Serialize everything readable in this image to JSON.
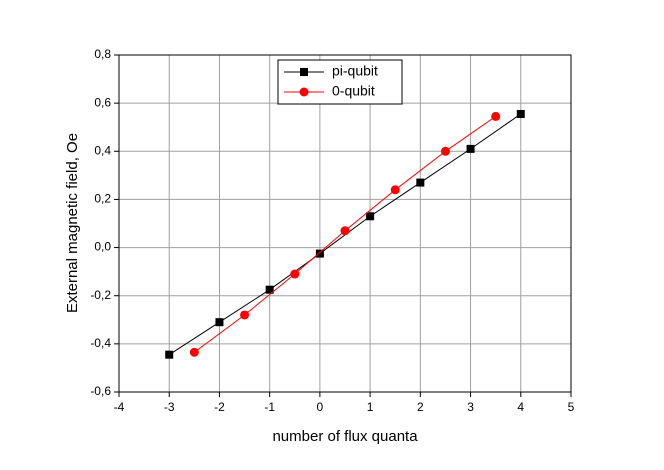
{
  "chart_data": {
    "type": "line",
    "x_label": "number of flux quanta",
    "y_label": "External magnetic field, Oe",
    "xlim": [
      -4,
      5
    ],
    "xticks": [
      -4,
      -3,
      -2,
      -1,
      0,
      1,
      2,
      3,
      4,
      5
    ],
    "ylim": [
      -0.6,
      0.8
    ],
    "yticks": [
      {
        "value": -0.6,
        "label": "-0,6"
      },
      {
        "value": -0.4,
        "label": "-0,4"
      },
      {
        "value": -0.2,
        "label": "-0,2"
      },
      {
        "value": 0.0,
        "label": "0,0"
      },
      {
        "value": 0.2,
        "label": "0,2"
      },
      {
        "value": 0.4,
        "label": "0,4"
      },
      {
        "value": 0.6,
        "label": "0,6"
      },
      {
        "value": 0.8,
        "label": "0,8"
      }
    ],
    "grid": true,
    "legend": "upper center",
    "series": [
      {
        "name": "pi-qubit",
        "color": "#000000",
        "marker": "square",
        "x": [
          -3,
          -2,
          -1,
          0,
          1,
          2,
          3,
          4
        ],
        "values": [
          -0.445,
          -0.31,
          -0.175,
          -0.025,
          0.13,
          0.27,
          0.41,
          0.555
        ]
      },
      {
        "name": "0-qubit",
        "color": "#ff0000",
        "marker": "circle",
        "x": [
          -2.5,
          -1.5,
          -0.5,
          0.5,
          1.5,
          2.5,
          3.5
        ],
        "values": [
          -0.435,
          -0.28,
          -0.11,
          0.07,
          0.24,
          0.4,
          0.545
        ]
      }
    ]
  }
}
